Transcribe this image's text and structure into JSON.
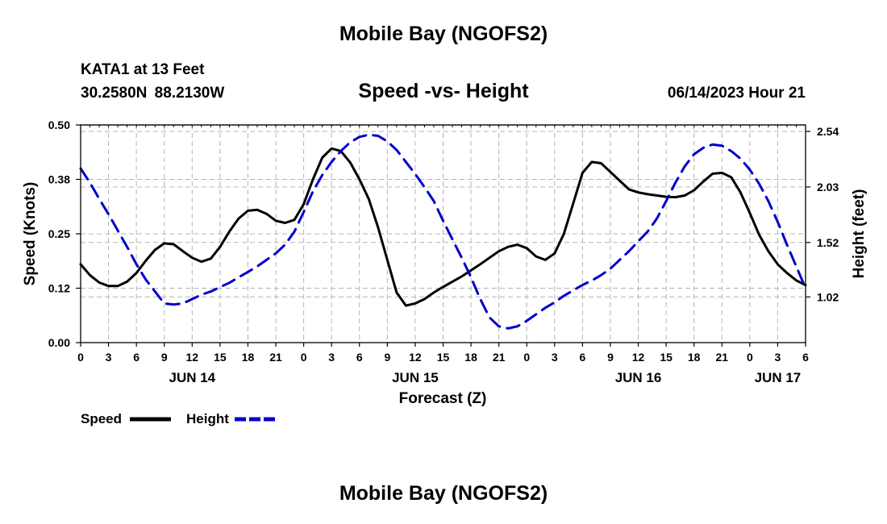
{
  "header": {
    "title": "Mobile Bay (NGOFS2)",
    "station_name": "KATA1 at 13 Feet",
    "station_position": "30.2580N  88.2130W",
    "chart_title": "Speed -vs- Height",
    "timestamp": "06/14/2023 Hour 21"
  },
  "footer": {
    "title": "Mobile Bay (NGOFS2)"
  },
  "colors": {
    "speed": "#000000",
    "height": "#0000cc",
    "grid": "#b4b4b4"
  },
  "chart_data": {
    "type": "line",
    "title": "Speed -vs- Height",
    "xlabel": "Forecast (Z)",
    "ylabel": "Speed (Knots)",
    "y2label": "Height (feet)",
    "x_unit": "hours since 2023-06-14 00Z",
    "xlim": [
      0,
      78
    ],
    "ylim": [
      0,
      0.5
    ],
    "y2lim": [
      0.6,
      2.6
    ],
    "x_ticks": [
      0,
      3,
      6,
      9,
      12,
      15,
      18,
      21,
      24,
      27,
      30,
      33,
      36,
      39,
      42,
      45,
      48,
      51,
      54,
      57,
      60,
      63,
      66,
      69,
      72,
      75,
      78
    ],
    "x_tick_labels": [
      "0",
      "3",
      "6",
      "9",
      "12",
      "15",
      "18",
      "21",
      "0",
      "3",
      "6",
      "9",
      "12",
      "15",
      "18",
      "21",
      "0",
      "3",
      "6",
      "9",
      "12",
      "15",
      "18",
      "21",
      "0",
      "3",
      "6"
    ],
    "date_labels": [
      {
        "x": 12,
        "label": "JUN 14"
      },
      {
        "x": 36,
        "label": "JUN 15"
      },
      {
        "x": 60,
        "label": "JUN 16"
      },
      {
        "x": 75,
        "label": "JUN 17"
      }
    ],
    "y_ticks": [
      0.0,
      0.125,
      0.25,
      0.375,
      0.5
    ],
    "y_tick_labels": [
      "0.00",
      "0.12",
      "0.25",
      "0.38",
      "0.50"
    ],
    "y2_ticks": [
      1.02,
      1.52,
      2.03,
      2.54
    ],
    "y2_tick_labels": [
      "1.02",
      "1.52",
      "2.03",
      "2.54"
    ],
    "grid": true,
    "legend_position": "bottom-left",
    "series": [
      {
        "name": "Speed",
        "axis": "left",
        "style": "solid",
        "x": [
          0,
          1,
          2,
          3,
          4,
          5,
          6,
          7,
          8,
          9,
          10,
          11,
          12,
          13,
          14,
          15,
          16,
          17,
          18,
          19,
          20,
          21,
          22,
          23,
          24,
          25,
          26,
          27,
          28,
          29,
          30,
          31,
          32,
          33,
          34,
          35,
          36,
          37,
          38,
          39,
          40,
          41,
          42,
          43,
          44,
          45,
          46,
          47,
          48,
          49,
          50,
          51,
          52,
          53,
          54,
          55,
          56,
          57,
          58,
          59,
          60,
          61,
          62,
          63,
          64,
          65,
          66,
          67,
          68,
          69,
          70,
          71,
          72,
          73,
          74,
          75,
          76,
          77,
          78
        ],
        "values": [
          0.18,
          0.155,
          0.138,
          0.13,
          0.13,
          0.14,
          0.16,
          0.188,
          0.213,
          0.228,
          0.226,
          0.21,
          0.195,
          0.186,
          0.193,
          0.22,
          0.255,
          0.285,
          0.303,
          0.305,
          0.296,
          0.28,
          0.275,
          0.282,
          0.318,
          0.375,
          0.425,
          0.446,
          0.44,
          0.414,
          0.375,
          0.33,
          0.265,
          0.19,
          0.115,
          0.085,
          0.09,
          0.1,
          0.115,
          0.128,
          0.14,
          0.152,
          0.166,
          0.18,
          0.195,
          0.21,
          0.22,
          0.225,
          0.217,
          0.198,
          0.19,
          0.205,
          0.25,
          0.32,
          0.39,
          0.415,
          0.412,
          0.392,
          0.372,
          0.352,
          0.345,
          0.341,
          0.338,
          0.335,
          0.334,
          0.338,
          0.35,
          0.37,
          0.388,
          0.39,
          0.38,
          0.345,
          0.298,
          0.248,
          0.21,
          0.18,
          0.16,
          0.143,
          0.132
        ]
      },
      {
        "name": "Height",
        "axis": "right",
        "style": "dashed",
        "x": [
          0,
          1,
          2,
          3,
          4,
          5,
          6,
          7,
          8,
          9,
          10,
          11,
          12,
          13,
          14,
          15,
          16,
          17,
          18,
          19,
          20,
          21,
          22,
          23,
          24,
          25,
          26,
          27,
          28,
          29,
          30,
          31,
          32,
          33,
          34,
          35,
          36,
          37,
          38,
          39,
          40,
          41,
          42,
          43,
          44,
          45,
          46,
          47,
          48,
          49,
          50,
          51,
          52,
          53,
          54,
          55,
          56,
          57,
          58,
          59,
          60,
          61,
          62,
          63,
          64,
          65,
          66,
          67,
          68,
          69,
          70,
          71,
          72,
          73,
          74,
          75,
          76,
          77,
          78
        ],
        "values": [
          2.2,
          2.07,
          1.92,
          1.78,
          1.63,
          1.48,
          1.32,
          1.18,
          1.07,
          0.96,
          0.95,
          0.96,
          1.0,
          1.04,
          1.07,
          1.11,
          1.15,
          1.2,
          1.25,
          1.3,
          1.36,
          1.42,
          1.5,
          1.62,
          1.8,
          1.99,
          2.14,
          2.26,
          2.36,
          2.44,
          2.49,
          2.51,
          2.5,
          2.45,
          2.37,
          2.26,
          2.15,
          2.03,
          1.9,
          1.72,
          1.55,
          1.38,
          1.2,
          1.0,
          0.83,
          0.75,
          0.73,
          0.75,
          0.8,
          0.86,
          0.92,
          0.97,
          1.03,
          1.08,
          1.13,
          1.17,
          1.22,
          1.28,
          1.36,
          1.44,
          1.53,
          1.62,
          1.74,
          1.9,
          2.07,
          2.22,
          2.33,
          2.39,
          2.42,
          2.41,
          2.36,
          2.29,
          2.19,
          2.06,
          1.9,
          1.71,
          1.5,
          1.3,
          1.1
        ]
      }
    ]
  }
}
